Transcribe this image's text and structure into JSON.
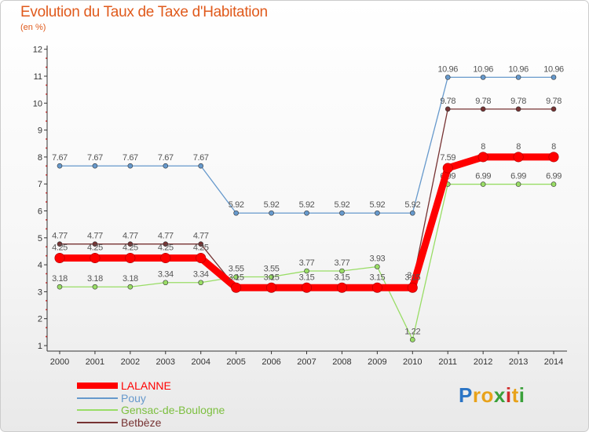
{
  "chart_data": {
    "type": "line",
    "title": "Evolution du Taux de Taxe d'Habitation",
    "subtitle": "(en %)",
    "xlabel": "",
    "ylabel": "",
    "categories": [
      "2000",
      "2001",
      "2002",
      "2003",
      "2004",
      "2005",
      "2006",
      "2007",
      "2008",
      "2009",
      "2010",
      "2011",
      "2012",
      "2013",
      "2014"
    ],
    "yticks": [
      "1",
      "2",
      "3",
      "4",
      "5",
      "6",
      "7",
      "8",
      "9",
      "10",
      "11",
      "12"
    ],
    "ylim": [
      1,
      12
    ],
    "series": [
      {
        "name": "LALANNE",
        "color": "#ff0000",
        "point_label_color": "#555555",
        "values": [
          4.25,
          4.25,
          4.25,
          4.25,
          4.25,
          3.15,
          3.15,
          3.15,
          3.15,
          3.15,
          3.15,
          7.59,
          8,
          8,
          8
        ],
        "labels": [
          "4.25",
          "4.25",
          "4.25",
          "4.25",
          "4.25",
          "3.15",
          "3.15",
          "3.15",
          "3.15",
          "3.15",
          "3.15",
          "7.59",
          "8",
          "8",
          "8"
        ]
      },
      {
        "name": "Pouy",
        "color": "#6699cc",
        "point_label_color": "#555555",
        "values": [
          7.67,
          7.67,
          7.67,
          7.67,
          7.67,
          5.92,
          5.92,
          5.92,
          5.92,
          5.92,
          5.92,
          10.96,
          10.96,
          10.96,
          10.96
        ],
        "labels": [
          "7.67",
          "7.67",
          "7.67",
          "7.67",
          "7.67",
          "5.92",
          "5.92",
          "5.92",
          "5.92",
          "5.92",
          "5.92",
          "10.96",
          "10.96",
          "10.96",
          "10.96"
        ]
      },
      {
        "name": "Gensac-de-Boulogne",
        "color": "#99dd66",
        "point_label_color": "#555555",
        "values": [
          3.18,
          3.18,
          3.18,
          3.34,
          3.34,
          3.55,
          3.55,
          3.77,
          3.77,
          3.93,
          1.22,
          6.99,
          6.99,
          6.99,
          6.99
        ],
        "labels": [
          "3.18",
          "3.18",
          "3.18",
          "3.34",
          "3.34",
          "3.55",
          "3.55",
          "3.77",
          "3.77",
          "3.93",
          "1.22",
          "6.99",
          "6.99",
          "6.99",
          "6.99"
        ]
      },
      {
        "name": "Betbèze",
        "color": "#773333",
        "point_label_color": "#555555",
        "values": [
          4.77,
          4.77,
          4.77,
          4.77,
          4.77,
          null,
          null,
          null,
          null,
          null,
          3.3,
          9.78,
          9.78,
          9.78,
          9.78
        ],
        "labels": [
          "4.77",
          "4.77",
          "4.77",
          "4.77",
          "4.77",
          "",
          "",
          "",
          "",
          "",
          "3.3",
          "9.78",
          "9.78",
          "9.78",
          "9.78"
        ]
      }
    ],
    "grid": false,
    "legend_position": "bottom-left"
  },
  "colors": {
    "title": "#e05a1c",
    "axis": "#333333",
    "tick_dots": "#cc2222"
  },
  "logo": {
    "letters": [
      "P",
      "r",
      "o",
      "x",
      "i",
      "t",
      "i"
    ],
    "colors": [
      "#2a74c5",
      "#e8a21a",
      "#e8a21a",
      "#3aa03a",
      "#d02a2a",
      "#e8a21a",
      "#3aa03a"
    ]
  }
}
